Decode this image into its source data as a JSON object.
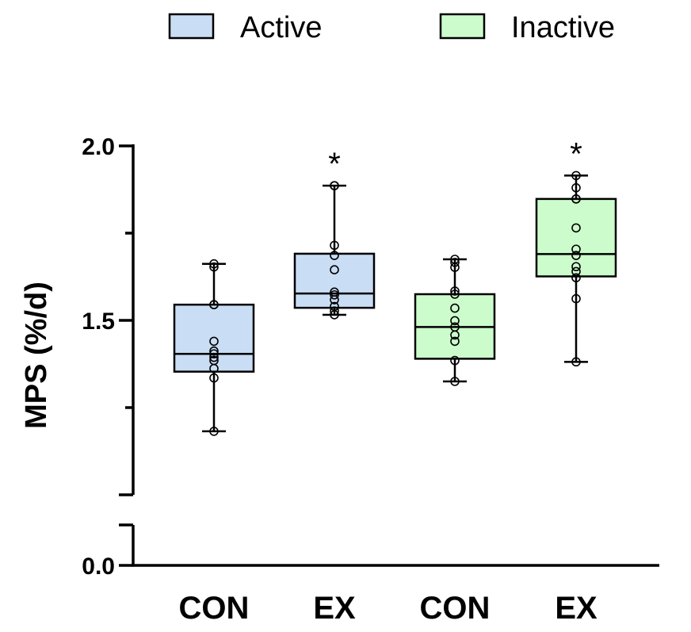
{
  "chart_data": {
    "type": "box",
    "ylabel": "MPS (%/d)",
    "xlabel": "",
    "ylim": [
      0.0,
      2.0
    ],
    "y_axis_break": true,
    "y_ticks_labeled": [
      "0.0",
      "1.5",
      "2.0"
    ],
    "legend": {
      "placement": "top",
      "entries": [
        {
          "label": "Active",
          "color": "#c9ddf5"
        },
        {
          "label": "Inactive",
          "color": "#ccfccc"
        }
      ]
    },
    "categories": [
      "CON",
      "EX",
      "CON",
      "EX"
    ],
    "boxes": [
      {
        "label": "CON",
        "group": "Active",
        "min": 1.182,
        "q1": 1.353,
        "median": 1.404,
        "q3": 1.545,
        "max": 1.662,
        "points": [
          1.662,
          1.653,
          1.545,
          1.545,
          1.44,
          1.412,
          1.404,
          1.394,
          1.385,
          1.362,
          1.335,
          1.182
        ],
        "significance": ""
      },
      {
        "label": "EX",
        "group": "Active",
        "min": 1.516,
        "q1": 1.536,
        "median": 1.577,
        "q3": 1.691,
        "max": 1.886,
        "points": [
          1.886,
          1.886,
          1.715,
          1.686,
          1.645,
          1.581,
          1.573,
          1.559,
          1.54,
          1.527,
          1.516
        ],
        "significance": "*"
      },
      {
        "label": "CON",
        "group": "Inactive",
        "min": 1.325,
        "q1": 1.39,
        "median": 1.481,
        "q3": 1.575,
        "max": 1.675,
        "points": [
          1.675,
          1.666,
          1.652,
          1.584,
          1.575,
          1.535,
          1.499,
          1.481,
          1.458,
          1.44,
          1.385,
          1.325
        ],
        "significance": ""
      },
      {
        "label": "EX",
        "group": "Inactive",
        "min": 1.381,
        "q1": 1.626,
        "median": 1.69,
        "q3": 1.848,
        "max": 1.915,
        "points": [
          1.915,
          1.88,
          1.848,
          1.848,
          1.765,
          1.704,
          1.686,
          1.654,
          1.64,
          1.622,
          1.562,
          1.381
        ],
        "significance": "*"
      }
    ]
  }
}
